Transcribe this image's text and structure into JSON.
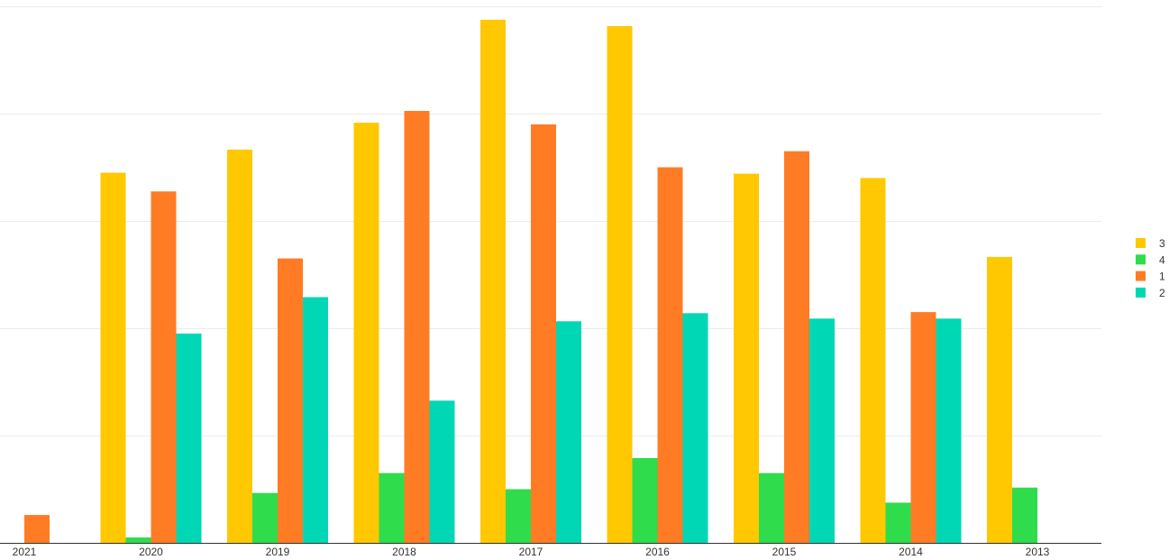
{
  "chart_data": {
    "type": "bar",
    "title": "",
    "xlabel": "",
    "ylabel": "",
    "categories": [
      "2021",
      "2020",
      "2019",
      "2018",
      "2017",
      "2016",
      "2015",
      "2014",
      "2013"
    ],
    "ylim": [
      0,
      100
    ],
    "grid": true,
    "legend": "right",
    "series": [
      {
        "name": "3",
        "color": "#FFC800",
        "values": [
          0,
          69,
          73.3,
          78.3,
          97.5,
          96.3,
          68.8,
          68,
          53.3
        ]
      },
      {
        "name": "4",
        "color": "#2FDC4B",
        "values": [
          0,
          1,
          9.3,
          13,
          10,
          15.8,
          13,
          7.5,
          10.3
        ]
      },
      {
        "name": "1",
        "color": "#FF7C24",
        "values": [
          5.2,
          65.5,
          53,
          80.5,
          78,
          70,
          73,
          43,
          0
        ]
      },
      {
        "name": "2",
        "color": "#00D7B4",
        "values": [
          0,
          39,
          45.8,
          26.5,
          41.3,
          42.8,
          41.8,
          41.8,
          0
        ]
      }
    ]
  }
}
